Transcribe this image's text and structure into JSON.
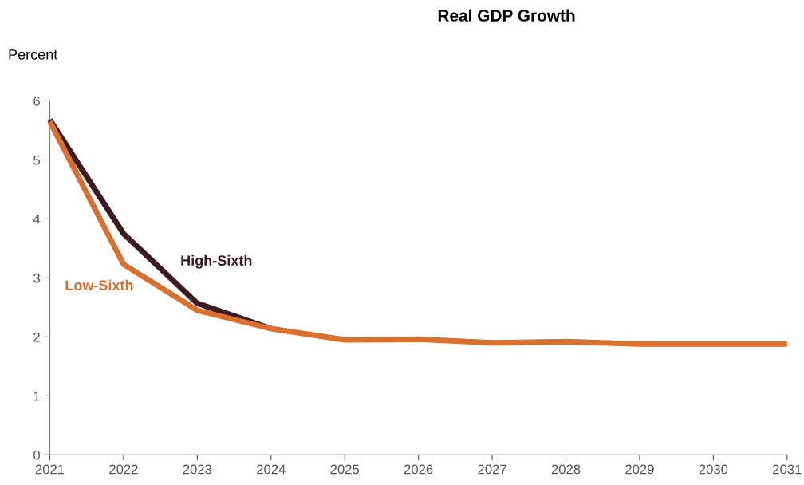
{
  "chart_data": {
    "type": "line",
    "title": "Real GDP Growth",
    "ylabel": "Percent",
    "x": [
      2021,
      2022,
      2023,
      2024,
      2025,
      2026,
      2027,
      2028,
      2029,
      2030,
      2031
    ],
    "series": [
      {
        "name": "High-Sixth",
        "color": "#3d1a1f",
        "values": [
          5.68,
          3.75,
          2.57,
          2.14,
          null,
          null,
          null,
          null,
          null,
          null,
          null
        ]
      },
      {
        "name": "Low-Sixth",
        "color": "#d9702f",
        "values": [
          5.65,
          3.23,
          2.45,
          2.14,
          1.95,
          1.96,
          1.9,
          1.92,
          1.88,
          1.88,
          1.88
        ]
      }
    ],
    "xlim": [
      2021,
      2031
    ],
    "xticks": [
      2021,
      2022,
      2023,
      2024,
      2025,
      2026,
      2027,
      2028,
      2029,
      2030,
      2031
    ],
    "ylim": [
      0,
      6
    ],
    "yticks": [
      0,
      1,
      2,
      3,
      4,
      5,
      6
    ],
    "grid": false,
    "legend": false,
    "marker": "none",
    "line_style": "solid"
  }
}
